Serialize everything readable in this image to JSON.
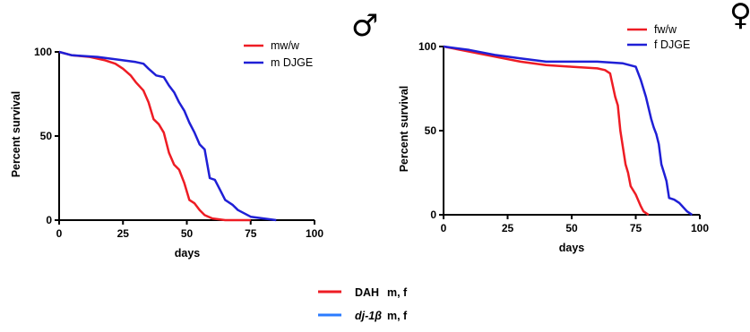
{
  "colors": {
    "red": "#ee1c24",
    "blue": "#1f1fd6",
    "legend_blue": "#2b7bff"
  },
  "chart_data": [
    {
      "type": "line",
      "symbol": "♂",
      "xlabel": "days",
      "ylabel": "Percent survival",
      "xlim": [
        0,
        100
      ],
      "ylim": [
        0,
        100
      ],
      "xticks": [
        "0",
        "25",
        "50",
        "75",
        "100"
      ],
      "yticks": [
        "0",
        "50",
        "100"
      ],
      "legend_position": "top-right",
      "series": [
        {
          "name": "mw/w",
          "color": "red",
          "x": [
            0,
            5,
            12,
            15,
            18,
            22,
            25,
            28,
            30,
            33,
            35,
            37,
            39,
            41,
            43,
            45,
            47,
            49,
            51,
            53,
            55,
            57,
            60,
            65,
            75
          ],
          "y": [
            100,
            98,
            97,
            96,
            95,
            93,
            90,
            86,
            82,
            77,
            70,
            60,
            57,
            52,
            40,
            33,
            30,
            22,
            12,
            10,
            6,
            3,
            1,
            0,
            0
          ]
        },
        {
          "name": "m DJGE",
          "color": "blue",
          "x": [
            0,
            5,
            15,
            20,
            25,
            30,
            33,
            35,
            38,
            41,
            43,
            45,
            47,
            49,
            51,
            53,
            55,
            57,
            59,
            61,
            63,
            65,
            68,
            70,
            75,
            80,
            85
          ],
          "y": [
            100,
            98,
            97,
            96,
            95,
            94,
            93,
            90,
            86,
            85,
            80,
            76,
            70,
            65,
            58,
            52,
            45,
            42,
            25,
            24,
            18,
            12,
            9,
            6,
            2,
            1,
            0
          ]
        }
      ]
    },
    {
      "type": "line",
      "symbol": "♀",
      "xlabel": "days",
      "ylabel": "Percent survival",
      "xlim": [
        0,
        100
      ],
      "ylim": [
        0,
        100
      ],
      "xticks": [
        "0",
        "25",
        "50",
        "75",
        "100"
      ],
      "yticks": [
        "0",
        "50",
        "100"
      ],
      "legend_position": "top-right",
      "series": [
        {
          "name": "fw/w",
          "color": "red",
          "x": [
            0,
            10,
            20,
            30,
            40,
            50,
            60,
            63,
            65,
            67,
            68,
            69,
            70,
            71,
            72,
            73,
            75,
            77,
            78,
            80
          ],
          "y": [
            100,
            97,
            94,
            91,
            89,
            88,
            87,
            86,
            84,
            70,
            65,
            50,
            40,
            30,
            25,
            17,
            12,
            5,
            2,
            0
          ]
        },
        {
          "name": "f DJGE",
          "color": "blue",
          "x": [
            0,
            10,
            20,
            30,
            40,
            50,
            60,
            70,
            75,
            77,
            79,
            81,
            82,
            83,
            84,
            85,
            86,
            87,
            88,
            90,
            92,
            95,
            97
          ],
          "y": [
            100,
            98,
            95,
            93,
            91,
            91,
            91,
            90,
            88,
            80,
            70,
            57,
            52,
            48,
            42,
            30,
            25,
            20,
            10,
            9,
            7,
            2,
            0
          ]
        }
      ]
    }
  ],
  "legend": {
    "items": [
      {
        "color": "red",
        "label": "DAH",
        "suffix": "m, f"
      },
      {
        "color": "legend_blue",
        "label": "dj-1β",
        "suffix": "m, f"
      }
    ]
  }
}
